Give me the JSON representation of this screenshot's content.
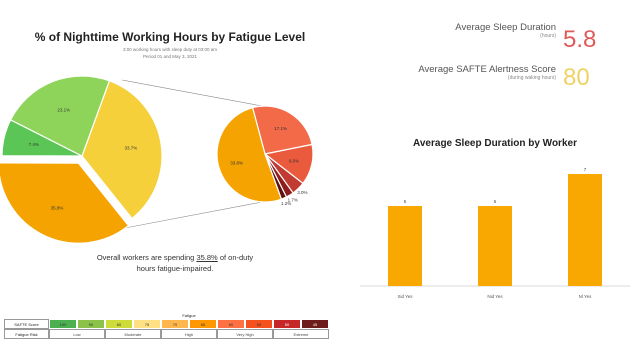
{
  "left_panel": {
    "title": "% of Nighttime Working Hours by Fatigue Level",
    "subtitle_line1": "3:00 working hours with sleep duty at 03:00 am",
    "subtitle_line2": "Period 01 and May 3, 2021",
    "summary_prefix": "Overall workers are spending ",
    "summary_value": "35.8%",
    "summary_suffix": " of on-duty",
    "summary_line2": "hours fatigue-impaired."
  },
  "metrics": {
    "sleep": {
      "label": "Average Sleep Duration",
      "sublabel": "(hours)",
      "value": "5.8",
      "color": "#e05a5a"
    },
    "alertness": {
      "label": "Average SAFTE Alertness Score",
      "sublabel": "(during waking hours)",
      "value": "80",
      "color": "#f0d264"
    }
  },
  "legend_table": {
    "header": "Fatigue",
    "row1_label": "SAFTE Score",
    "row2_label": "Fatigue Risk",
    "scores": [
      "100",
      "90",
      "80",
      "75",
      "70",
      "65",
      "60",
      "55",
      "50",
      "45"
    ],
    "score_colors": [
      "#4caf50",
      "#8bc34a",
      "#cddc39",
      "#ffe082",
      "#ffb74d",
      "#ff9800",
      "#ff7043",
      "#f4511e",
      "#c62828",
      "#6d1b1b"
    ],
    "risk_levels": [
      "Low",
      "Moderate",
      "High",
      "Very High",
      "Extreme"
    ]
  },
  "chart_data": [
    {
      "type": "pie",
      "title": "% of Nighttime Working Hours by Fatigue Level",
      "slices": [
        {
          "label": "33.7%",
          "value": 33.7,
          "color": "#f5d03a"
        },
        {
          "label": "35.8%",
          "value": 35.8,
          "color": "#f5a300"
        },
        {
          "label": "7.4%",
          "value": 7.4,
          "color": "#5bc655"
        },
        {
          "label": "23.1%",
          "value": 23.1,
          "color": "#8fd45a"
        }
      ]
    },
    {
      "type": "pie",
      "title": "",
      "slices": [
        {
          "label": "17.1%",
          "value": 17.1,
          "color": "#f26a48"
        },
        {
          "label": "9.0%",
          "value": 9.0,
          "color": "#ea5a3c"
        },
        {
          "label": "3.0%",
          "value": 3.0,
          "color": "#c23b33"
        },
        {
          "label": "1.7%",
          "value": 1.7,
          "color": "#8f1d1d"
        },
        {
          "label": "1.2%",
          "value": 1.2,
          "color": "#611010"
        },
        {
          "label": "33.8%",
          "value": 33.8,
          "color": "#f5a300"
        }
      ]
    },
    {
      "type": "bar",
      "title": "Average Sleep Duration by Worker",
      "categories": [
        "Sid Yes",
        "Nid Yes",
        "Nl Yes"
      ],
      "values": [
        5,
        5,
        7
      ],
      "data_labels": [
        "5",
        "5",
        "7"
      ],
      "ylim": [
        0,
        8
      ],
      "bar_color": "#f8a800",
      "grid": false
    }
  ]
}
